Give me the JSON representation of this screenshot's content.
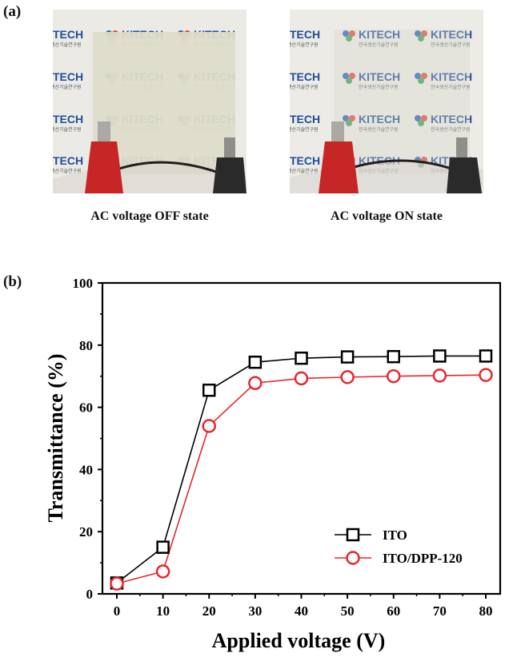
{
  "panel_a": {
    "label": "(a)",
    "photos": [
      {
        "caption": "AC voltage OFF state",
        "state": "off"
      },
      {
        "caption": "AC voltage ON state",
        "state": "on"
      }
    ],
    "logo_word": "KITECH",
    "logo_sub": "한국생산기술연구원",
    "logo_color": "#1f4e9c"
  },
  "panel_b": {
    "label": "(b)"
  },
  "chart_data": {
    "type": "line",
    "xlabel": "Applied voltage (V)",
    "ylabel": "Transmittance (%)",
    "xlim": [
      0,
      80
    ],
    "ylim": [
      0,
      100
    ],
    "xticks": [
      0,
      10,
      20,
      30,
      40,
      50,
      60,
      70,
      80
    ],
    "yticks": [
      0,
      20,
      40,
      60,
      80,
      100
    ],
    "legend_position": "bottom-right",
    "x": [
      0,
      10,
      20,
      30,
      40,
      50,
      60,
      70,
      80
    ],
    "series": [
      {
        "name": "ITO",
        "marker": "square",
        "color": "#000000",
        "values": [
          3.5,
          15,
          65.5,
          74.5,
          75.8,
          76.2,
          76.3,
          76.5,
          76.5
        ]
      },
      {
        "name": "ITO/DPP-120",
        "marker": "circle",
        "color": "#e8262b",
        "values": [
          3.3,
          7.2,
          54,
          67.8,
          69.3,
          69.7,
          70,
          70.2,
          70.4
        ]
      }
    ]
  }
}
